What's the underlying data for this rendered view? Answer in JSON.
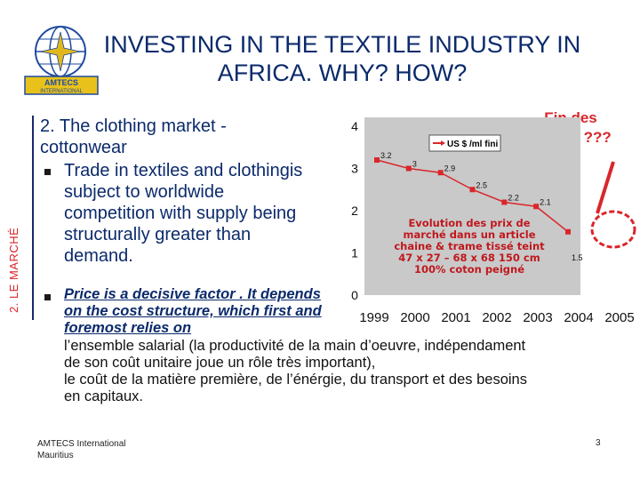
{
  "logo": {
    "text": "AMTECS",
    "subtext": "INTERNATIONAL"
  },
  "title": {
    "line1": "INVESTING IN THE TEXTILE INDUSTRY IN",
    "line2": "AFRICA. WHY? HOW?"
  },
  "side_label": "2. LE MARCHÉ",
  "section_heading": "2. The clothing market - cottonwear",
  "bullets": {
    "trade": "Trade in textiles and clothingis subject to worldwide competition with supply being structurally greater than demand.",
    "price": "Price is a decisive factor . It depends on the cost structure, which first and foremost relies on"
  },
  "french_text": {
    "line1": "l’ensemble salarial (la productivité de la main d’oeuvre, indépendament",
    "line2": "de son coût unitaire joue un rôle très important),",
    "line3": "le coût de la matière première, de l’énérgie, du transport et des besoins",
    "line4": "en capitaux."
  },
  "fin_des_quotas": "Fin des quotas ???",
  "chart_data": {
    "type": "line",
    "x": [
      "1999",
      "2000",
      "2001",
      "2002",
      "2003",
      "2004",
      "2005"
    ],
    "series": [
      {
        "name": "US $ /ml fini",
        "values": [
          3.2,
          3.0,
          2.9,
          2.5,
          2.2,
          2.1,
          1.5
        ]
      }
    ],
    "data_labels": [
      "3.2",
      "3",
      "2.9",
      "2.5",
      "2.2",
      "2.1",
      "1.5"
    ],
    "ylim": [
      0,
      4
    ],
    "yticks": [
      "0",
      "1",
      "2",
      "3",
      "4"
    ],
    "annotation": [
      "Evolution des prix de",
      "marché dans un article",
      "chaine & trame tissé teint",
      "47 x 27 – 68 x 68 150 cm",
      "100% coton peigné"
    ],
    "legend_position": "top-right",
    "colors": {
      "line": "#d9262b",
      "plot_bg": "#c9c9c9",
      "annotation": "#c0181d"
    }
  },
  "footer": {
    "org_line1": "AMTECS International",
    "org_line2": "Mauritius",
    "page_number": "3"
  }
}
